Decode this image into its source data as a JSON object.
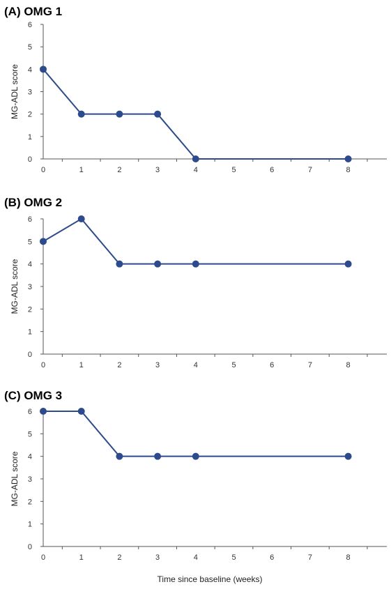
{
  "chart_data": [
    {
      "type": "line",
      "title": "(A) OMG 1",
      "ylabel": "MG-ADL score",
      "xlabel": "",
      "categories": [
        "0",
        "1",
        "2",
        "3",
        "4",
        "5",
        "6",
        "7",
        "8"
      ],
      "ylim": [
        0,
        6
      ],
      "yticks": [
        "0",
        "1",
        "2",
        "3",
        "4",
        "5",
        "6"
      ],
      "series": [
        {
          "x": [
            0,
            1,
            2,
            3,
            4,
            8
          ],
          "values": [
            4,
            2,
            2,
            2,
            0,
            0
          ]
        }
      ]
    },
    {
      "type": "line",
      "title": "(B) OMG 2",
      "ylabel": "MG-ADL score",
      "xlabel": "",
      "categories": [
        "0",
        "1",
        "2",
        "3",
        "4",
        "5",
        "6",
        "7",
        "8"
      ],
      "ylim": [
        0,
        6
      ],
      "yticks": [
        "0",
        "1",
        "2",
        "3",
        "4",
        "5",
        "6"
      ],
      "series": [
        {
          "x": [
            0,
            1,
            2,
            3,
            4,
            8
          ],
          "values": [
            5,
            6,
            4,
            4,
            4,
            4
          ]
        }
      ]
    },
    {
      "type": "line",
      "title": "(C) OMG 3",
      "ylabel": "MG-ADL score",
      "xlabel": "",
      "categories": [
        "0",
        "1",
        "2",
        "3",
        "4",
        "5",
        "6",
        "7",
        "8"
      ],
      "ylim": [
        0,
        6
      ],
      "yticks": [
        "0",
        "1",
        "2",
        "3",
        "4",
        "5",
        "6"
      ],
      "series": [
        {
          "x": [
            0,
            1,
            2,
            3,
            4,
            8
          ],
          "values": [
            6,
            6,
            4,
            4,
            4,
            4
          ]
        }
      ]
    }
  ],
  "shared_xlabel": "Time since baseline (weeks)",
  "colors": {
    "line": "#2c4a8c",
    "marker": "#2c4a8c",
    "axis": "#555555"
  }
}
